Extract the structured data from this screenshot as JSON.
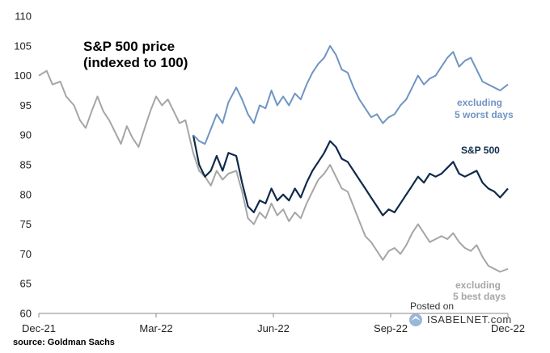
{
  "chart_data": {
    "type": "line",
    "title_lines": [
      "S&P 500 price",
      "(indexed to 100)"
    ],
    "ylim": [
      60,
      110
    ],
    "yticks": [
      110,
      105,
      100,
      95,
      90,
      85,
      80,
      75,
      70,
      65,
      60
    ],
    "xlim": [
      0,
      12
    ],
    "xticks": [
      {
        "value": 0,
        "label": "Dec-21"
      },
      {
        "value": 3,
        "label": "Mar-22"
      },
      {
        "value": 6,
        "label": "Jun-22"
      },
      {
        "value": 9,
        "label": "Sep-22"
      },
      {
        "value": 12,
        "label": "Dec-22"
      }
    ],
    "series": [
      {
        "name": "excluding 5 best days",
        "label_lines": [
          "excluding",
          "5 best days"
        ],
        "color": "#a6a6a6",
        "points": [
          [
            0,
            100
          ],
          [
            0.2,
            100.8
          ],
          [
            0.35,
            98.5
          ],
          [
            0.55,
            99
          ],
          [
            0.7,
            96.5
          ],
          [
            0.9,
            95
          ],
          [
            1.05,
            92.5
          ],
          [
            1.2,
            91.2
          ],
          [
            1.35,
            94
          ],
          [
            1.5,
            96.5
          ],
          [
            1.65,
            94
          ],
          [
            1.8,
            92.5
          ],
          [
            1.95,
            90.5
          ],
          [
            2.1,
            88.5
          ],
          [
            2.25,
            91.5
          ],
          [
            2.4,
            89.5
          ],
          [
            2.55,
            88
          ],
          [
            2.7,
            91
          ],
          [
            2.85,
            94
          ],
          [
            3,
            96.5
          ],
          [
            3.15,
            95
          ],
          [
            3.3,
            96
          ],
          [
            3.45,
            94
          ],
          [
            3.6,
            92
          ],
          [
            3.75,
            92.5
          ],
          [
            3.95,
            87
          ],
          [
            4.1,
            84
          ],
          [
            4.25,
            83
          ],
          [
            4.4,
            81.5
          ],
          [
            4.55,
            84
          ],
          [
            4.7,
            82.5
          ],
          [
            4.85,
            83.5
          ],
          [
            5.05,
            84
          ],
          [
            5.2,
            80.5
          ],
          [
            5.35,
            76
          ],
          [
            5.5,
            75
          ],
          [
            5.65,
            77
          ],
          [
            5.8,
            76
          ],
          [
            5.95,
            78.5
          ],
          [
            6.1,
            76.5
          ],
          [
            6.25,
            77.5
          ],
          [
            6.4,
            75.5
          ],
          [
            6.55,
            77
          ],
          [
            6.7,
            76
          ],
          [
            6.85,
            78.5
          ],
          [
            7,
            80.5
          ],
          [
            7.15,
            82.5
          ],
          [
            7.3,
            83.5
          ],
          [
            7.45,
            85
          ],
          [
            7.6,
            83
          ],
          [
            7.75,
            81
          ],
          [
            7.9,
            80.5
          ],
          [
            8.05,
            78
          ],
          [
            8.2,
            75.5
          ],
          [
            8.35,
            73
          ],
          [
            8.5,
            72
          ],
          [
            8.65,
            70.5
          ],
          [
            8.8,
            69
          ],
          [
            8.95,
            70.5
          ],
          [
            9.1,
            71
          ],
          [
            9.25,
            70
          ],
          [
            9.4,
            71.5
          ],
          [
            9.55,
            73.5
          ],
          [
            9.7,
            75
          ],
          [
            9.85,
            73.5
          ],
          [
            10,
            72
          ],
          [
            10.15,
            72.5
          ],
          [
            10.3,
            73
          ],
          [
            10.45,
            72.5
          ],
          [
            10.6,
            73.5
          ],
          [
            10.75,
            72
          ],
          [
            10.9,
            71
          ],
          [
            11.05,
            70.5
          ],
          [
            11.2,
            71.5
          ],
          [
            11.35,
            69.5
          ],
          [
            11.5,
            68
          ],
          [
            11.65,
            67.5
          ],
          [
            11.8,
            67
          ],
          [
            12,
            67.5
          ]
        ]
      },
      {
        "name": "S&P 500",
        "label_lines": [
          "S&P 500"
        ],
        "color": "#0f2a4a",
        "points": [
          [
            3.95,
            90
          ],
          [
            4.1,
            85
          ],
          [
            4.25,
            83
          ],
          [
            4.4,
            84
          ],
          [
            4.55,
            86.5
          ],
          [
            4.7,
            84
          ],
          [
            4.85,
            87
          ],
          [
            5.05,
            86.5
          ],
          [
            5.2,
            82
          ],
          [
            5.35,
            78
          ],
          [
            5.5,
            77
          ],
          [
            5.65,
            79
          ],
          [
            5.8,
            78.5
          ],
          [
            5.95,
            81
          ],
          [
            6.1,
            79
          ],
          [
            6.25,
            80
          ],
          [
            6.4,
            79
          ],
          [
            6.55,
            81
          ],
          [
            6.7,
            79.5
          ],
          [
            6.85,
            82
          ],
          [
            7,
            84
          ],
          [
            7.15,
            85.5
          ],
          [
            7.3,
            87
          ],
          [
            7.45,
            89
          ],
          [
            7.6,
            88
          ],
          [
            7.75,
            86
          ],
          [
            7.9,
            85.5
          ],
          [
            8.05,
            84
          ],
          [
            8.2,
            82.5
          ],
          [
            8.35,
            81
          ],
          [
            8.5,
            79.5
          ],
          [
            8.65,
            78
          ],
          [
            8.8,
            76.5
          ],
          [
            8.95,
            77.5
          ],
          [
            9.1,
            77
          ],
          [
            9.25,
            78.5
          ],
          [
            9.4,
            80
          ],
          [
            9.55,
            81.5
          ],
          [
            9.7,
            83
          ],
          [
            9.85,
            82
          ],
          [
            10,
            83.5
          ],
          [
            10.15,
            83
          ],
          [
            10.3,
            83.5
          ],
          [
            10.45,
            84.5
          ],
          [
            10.6,
            85.5
          ],
          [
            10.75,
            83.5
          ],
          [
            10.9,
            83
          ],
          [
            11.05,
            83.5
          ],
          [
            11.2,
            84
          ],
          [
            11.35,
            82
          ],
          [
            11.5,
            81
          ],
          [
            11.65,
            80.5
          ],
          [
            11.8,
            79.5
          ],
          [
            12,
            81
          ]
        ]
      },
      {
        "name": "excluding 5 worst days",
        "label_lines": [
          "excluding",
          "5 worst days"
        ],
        "color": "#6f95c4",
        "points": [
          [
            3.95,
            90
          ],
          [
            4.1,
            89
          ],
          [
            4.25,
            88.5
          ],
          [
            4.4,
            91
          ],
          [
            4.55,
            93.5
          ],
          [
            4.7,
            92
          ],
          [
            4.85,
            95.5
          ],
          [
            5.05,
            98
          ],
          [
            5.2,
            96
          ],
          [
            5.35,
            93.5
          ],
          [
            5.5,
            92
          ],
          [
            5.65,
            95
          ],
          [
            5.8,
            94.5
          ],
          [
            5.95,
            97.5
          ],
          [
            6.1,
            95
          ],
          [
            6.25,
            96.5
          ],
          [
            6.4,
            95
          ],
          [
            6.55,
            97
          ],
          [
            6.7,
            96
          ],
          [
            6.85,
            98.5
          ],
          [
            7,
            100.5
          ],
          [
            7.15,
            102
          ],
          [
            7.3,
            103
          ],
          [
            7.45,
            105
          ],
          [
            7.6,
            103.5
          ],
          [
            7.75,
            101
          ],
          [
            7.9,
            100.5
          ],
          [
            8.05,
            98
          ],
          [
            8.2,
            96
          ],
          [
            8.35,
            94.5
          ],
          [
            8.5,
            93
          ],
          [
            8.65,
            93.5
          ],
          [
            8.8,
            92
          ],
          [
            8.95,
            93
          ],
          [
            9.1,
            93.5
          ],
          [
            9.25,
            95
          ],
          [
            9.4,
            96
          ],
          [
            9.55,
            98
          ],
          [
            9.7,
            100
          ],
          [
            9.85,
            98.5
          ],
          [
            10,
            99.5
          ],
          [
            10.15,
            100
          ],
          [
            10.3,
            101.5
          ],
          [
            10.45,
            103
          ],
          [
            10.6,
            104
          ],
          [
            10.75,
            101.5
          ],
          [
            10.9,
            102.5
          ],
          [
            11.05,
            103
          ],
          [
            11.2,
            101
          ],
          [
            11.35,
            99
          ],
          [
            11.5,
            98.5
          ],
          [
            11.65,
            98
          ],
          [
            11.8,
            97.5
          ],
          [
            12,
            98.5
          ]
        ]
      }
    ]
  },
  "source": "source: Goldman Sachs",
  "watermark": {
    "posted_on": "Posted on",
    "site": "ISABELNET.com"
  }
}
